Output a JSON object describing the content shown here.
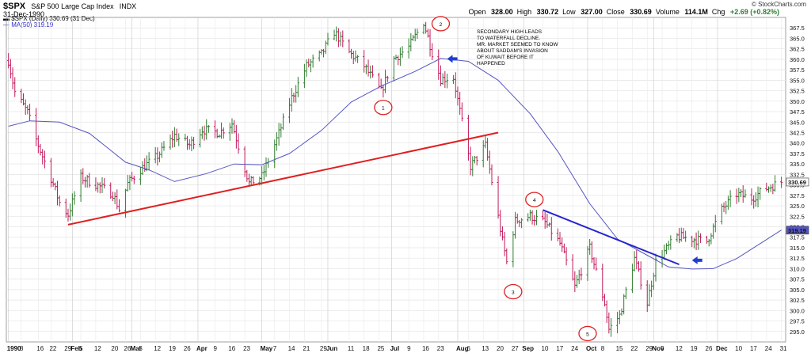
{
  "header": {
    "symbol": "$SPX",
    "name": "S&P 500 Large Cap Index",
    "exchange": "INDX",
    "date": "31-Dec-1990",
    "legend_price": "$SPX (Daily) 330.69 (31 Dec)",
    "legend_ma": "MA(50) 319.19",
    "open": "328.00",
    "high": "330.72",
    "low": "327.00",
    "close": "330.69",
    "volume": "114.1M",
    "chg": "+2.69 (+0.82%)",
    "open_label": "Open",
    "high_label": "High",
    "low_label": "Low",
    "close_label": "Close",
    "volume_label": "Volume",
    "chg_label": "Chg",
    "brand": "© StockCharts.com"
  },
  "annotation": {
    "lines": [
      "SECONDARY HIGH LEADS",
      "TO WATERFALL DECLINE.",
      "MR. MARKET SEEMED TO KNOW",
      "ABOUT SADDAM'S INVASION",
      "OF KUWAIT BEFORE IT",
      "HAPPENED"
    ]
  },
  "colors": {
    "up": "#2f7d2f",
    "down": "#c2185b",
    "ma": "#5555c4",
    "trend1": "#e02020",
    "trend2": "#2525d0",
    "arrow": "#1f3fd0",
    "circle": "#e02020"
  },
  "chart_data": {
    "type": "ohlc",
    "title": "S&P 500 Large Cap Index",
    "ylim": [
      292.5,
      370
    ],
    "y_ticks": [
      "295.0",
      "297.5",
      "300.0",
      "302.5",
      "305.0",
      "307.5",
      "310.0",
      "312.5",
      "315.0",
      "317.5",
      "320.0",
      "322.5",
      "325.0",
      "327.5",
      "330.0",
      "332.5",
      "335.0",
      "337.5",
      "340.0",
      "342.5",
      "345.0",
      "347.5",
      "350.0",
      "352.5",
      "355.0",
      "357.5",
      "360.0",
      "362.5",
      "365.0",
      "367.5"
    ],
    "x_ticks": [
      "1990",
      "8",
      "16",
      "22",
      "29",
      "Feb",
      "5",
      "12",
      "20",
      "26",
      "Mar",
      "5",
      "12",
      "19",
      "26",
      "Apr",
      "9",
      "16",
      "23",
      "May",
      "7",
      "14",
      "21",
      "29",
      "Jun",
      "11",
      "18",
      "25",
      "Jul",
      "9",
      "16",
      "23",
      "Aug",
      "6",
      "13",
      "20",
      "27",
      "Sep",
      "10",
      "17",
      "24",
      "Oct",
      "8",
      "15",
      "22",
      "29",
      "Nov",
      "5",
      "12",
      "19",
      "26",
      "Dec",
      "10",
      "17",
      "24",
      "31"
    ],
    "last_price_label": "330.69",
    "ma_label": "319.19",
    "ma_name": "MA(50)",
    "close_path": [
      [
        "1990-01-02",
        359.7
      ],
      [
        "1990-01-05",
        352.2
      ],
      [
        "1990-01-11",
        347.3
      ],
      [
        "1990-01-15",
        340.8
      ],
      [
        "1990-01-22",
        331.6
      ],
      [
        "1990-01-26",
        325.8
      ],
      [
        "1990-01-30",
        322.9
      ],
      [
        "1990-02-05",
        331.8
      ],
      [
        "1990-02-12",
        330.1
      ],
      [
        "1990-02-20",
        327.9
      ],
      [
        "1990-02-23",
        324.2
      ],
      [
        "1990-02-27",
        330.3
      ],
      [
        "1990-03-05",
        333.7
      ],
      [
        "1990-03-13",
        336.9
      ],
      [
        "1990-03-21",
        341.8
      ],
      [
        "1990-03-28",
        339.5
      ],
      [
        "1990-04-03",
        343.2
      ],
      [
        "1990-04-11",
        342.5
      ],
      [
        "1990-04-17",
        344.7
      ],
      [
        "1990-04-25",
        330.4
      ],
      [
        "1990-05-01",
        332.0
      ],
      [
        "1990-05-08",
        340.9
      ],
      [
        "1990-05-15",
        350.8
      ],
      [
        "1990-05-22",
        358.4
      ],
      [
        "1990-05-29",
        361.2
      ],
      [
        "1990-06-04",
        366.6
      ],
      [
        "1990-06-11",
        361.6
      ],
      [
        "1990-06-18",
        358.4
      ],
      [
        "1990-06-26",
        352.3
      ],
      [
        "1990-07-02",
        360.1
      ],
      [
        "1990-07-09",
        362.9
      ],
      [
        "1990-07-16",
        368.9
      ],
      [
        "1990-07-20",
        361.6
      ],
      [
        "1990-07-24",
        355.3
      ],
      [
        "1990-07-30",
        355.6
      ],
      [
        "1990-08-03",
        344.9
      ],
      [
        "1990-08-07",
        334.4
      ],
      [
        "1990-08-14",
        339.4
      ],
      [
        "1990-08-22",
        316.6
      ],
      [
        "1990-08-24",
        311.5
      ],
      [
        "1990-08-28",
        321.4
      ],
      [
        "1990-09-04",
        322.6
      ],
      [
        "1990-09-11",
        321.0
      ],
      [
        "1990-09-18",
        316.0
      ],
      [
        "1990-09-25",
        305.6
      ],
      [
        "1990-10-02",
        314.9
      ],
      [
        "1990-10-09",
        301.8
      ],
      [
        "1990-10-11",
        295.5
      ],
      [
        "1990-10-16",
        298.8
      ],
      [
        "1990-10-23",
        312.4
      ],
      [
        "1990-10-29",
        301.8
      ],
      [
        "1990-11-02",
        311.6
      ],
      [
        "1990-11-12",
        317.7
      ],
      [
        "1990-11-19",
        317.1
      ],
      [
        "1990-11-26",
        316.5
      ],
      [
        "1990-12-03",
        324.1
      ],
      [
        "1990-12-10",
        327.8
      ],
      [
        "1990-12-17",
        326.8
      ],
      [
        "1990-12-24",
        329.2
      ],
      [
        "1990-12-31",
        330.7
      ]
    ],
    "ma_path": [
      [
        "1990-01-02",
        344.0
      ],
      [
        "1990-01-12",
        345.3
      ],
      [
        "1990-01-26",
        345.0
      ],
      [
        "1990-02-09",
        342.3
      ],
      [
        "1990-02-26",
        335.4
      ],
      [
        "1990-03-09",
        333.6
      ],
      [
        "1990-03-21",
        330.8
      ],
      [
        "1990-04-05",
        332.7
      ],
      [
        "1990-04-18",
        335.0
      ],
      [
        "1990-05-01",
        334.8
      ],
      [
        "1990-05-14",
        337.5
      ],
      [
        "1990-05-29",
        343.0
      ],
      [
        "1990-06-12",
        349.8
      ],
      [
        "1990-06-26",
        353.6
      ],
      [
        "1990-07-12",
        357.1
      ],
      [
        "1990-07-24",
        360.2
      ],
      [
        "1990-08-06",
        359.5
      ],
      [
        "1990-08-20",
        355.0
      ],
      [
        "1990-09-04",
        347.0
      ],
      [
        "1990-09-17",
        338.0
      ],
      [
        "1990-10-02",
        325.5
      ],
      [
        "1990-10-15",
        317.1
      ],
      [
        "1990-10-29",
        313.2
      ],
      [
        "1990-11-08",
        310.4
      ],
      [
        "1990-11-19",
        309.9
      ],
      [
        "1990-11-29",
        310.0
      ],
      [
        "1990-12-10",
        312.4
      ],
      [
        "1990-12-31",
        319.2
      ]
    ],
    "annotations": {
      "trendline_support": [
        [
          "1990-01-30",
          320.5
        ],
        [
          "1990-08-20",
          342.5
        ]
      ],
      "trendline_resistance": [
        [
          "1990-09-10",
          324.0
        ],
        [
          "1990-11-13",
          311.0
        ]
      ],
      "circles": [
        [
          "1",
          "1990-06-27",
          348.5
        ],
        [
          "2",
          "1990-07-24",
          368.5
        ],
        [
          "3",
          "1990-08-27",
          304.5
        ],
        [
          "4",
          "1990-09-06",
          326.5
        ],
        [
          "5",
          "1990-10-01",
          294.5
        ]
      ],
      "arrows": [
        [
          "1990-07-27",
          360.1
        ],
        [
          "1990-11-19",
          312.0
        ]
      ]
    }
  }
}
